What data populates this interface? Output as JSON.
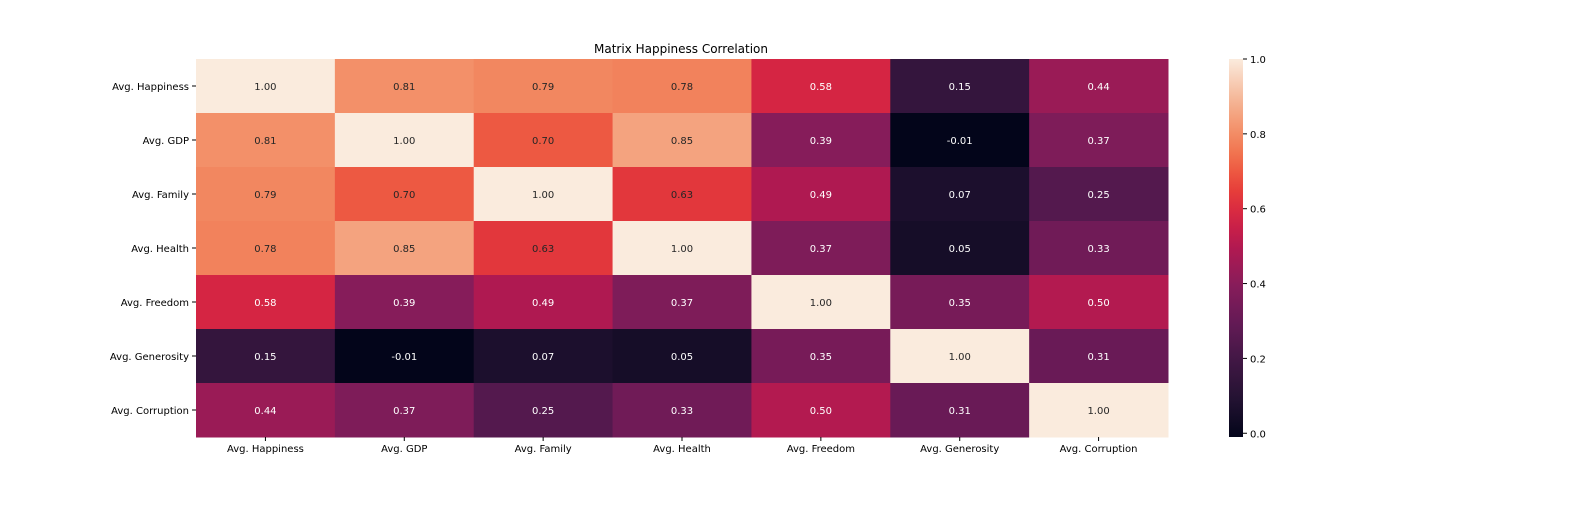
{
  "chart_data": {
    "type": "heatmap",
    "title": "Matrix Happiness Correlation",
    "x_labels": [
      "Avg. Happiness",
      "Avg. GDP",
      "Avg. Family",
      "Avg. Health",
      "Avg. Freedom",
      "Avg. Generosity",
      "Avg. Corruption"
    ],
    "y_labels": [
      "Avg. Happiness",
      "Avg. GDP",
      "Avg. Family",
      "Avg. Health",
      "Avg. Freedom",
      "Avg. Generosity",
      "Avg. Corruption"
    ],
    "values": [
      [
        1.0,
        0.81,
        0.79,
        0.78,
        0.58,
        0.15,
        0.44
      ],
      [
        0.81,
        1.0,
        0.7,
        0.85,
        0.39,
        -0.01,
        0.37
      ],
      [
        0.79,
        0.7,
        1.0,
        0.63,
        0.49,
        0.07,
        0.25
      ],
      [
        0.78,
        0.85,
        0.63,
        1.0,
        0.37,
        0.05,
        0.33
      ],
      [
        0.58,
        0.39,
        0.49,
        0.37,
        1.0,
        0.35,
        0.5
      ],
      [
        0.15,
        -0.01,
        0.07,
        0.05,
        0.35,
        1.0,
        0.31
      ],
      [
        0.44,
        0.37,
        0.25,
        0.33,
        0.5,
        0.31,
        1.0
      ]
    ],
    "value_format": "0.00",
    "colormap": "rocket",
    "colorbar": {
      "range": [
        -0.01,
        1.0
      ],
      "ticks": [
        0.0,
        0.2,
        0.4,
        0.6,
        0.8,
        1.0
      ],
      "tick_labels": [
        "0.0",
        "0.2",
        "0.4",
        "0.6",
        "0.8",
        "1.0"
      ]
    },
    "colors": {
      "text_light": "#ffffff",
      "text_dark": "#262626",
      "axis": "#000000"
    }
  }
}
